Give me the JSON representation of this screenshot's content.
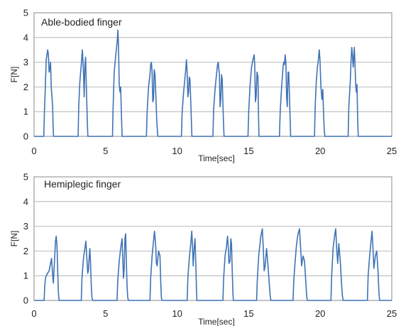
{
  "chart_data": [
    {
      "type": "line",
      "title": "Able-bodied finger",
      "xlabel": "Time[sec]",
      "ylabel": "F[N]",
      "xlim": [
        0,
        25
      ],
      "ylim": [
        0,
        5
      ],
      "xticks": [
        0,
        5,
        10,
        15,
        20,
        25
      ],
      "yticks": [
        0,
        1,
        2,
        3,
        4,
        5
      ],
      "grid": "horizontal",
      "line_color": "#3f73b5",
      "series": [
        {
          "x": [
            0,
            0.68,
            0.72,
            0.8,
            0.85,
            0.95,
            1.0,
            1.05,
            1.1,
            1.15,
            1.2,
            1.25,
            1.3,
            1.33,
            1.36,
            1.42,
            3.08,
            3.12,
            3.2,
            3.3,
            3.38,
            3.45,
            3.5,
            3.55,
            3.6,
            3.65,
            3.72,
            3.76,
            3.8,
            5.48,
            5.52,
            5.6,
            5.68,
            5.75,
            5.82,
            5.86,
            5.9,
            5.95,
            6.0,
            6.05,
            6.12,
            6.15,
            7.85,
            7.9,
            8.0,
            8.1,
            8.15,
            8.2,
            8.25,
            8.3,
            8.35,
            8.4,
            8.45,
            8.5,
            8.57,
            8.62,
            8.65,
            8.68,
            10.3,
            10.35,
            10.45,
            10.52,
            10.6,
            10.65,
            10.7,
            10.75,
            10.8,
            10.85,
            10.9,
            10.95,
            11.0,
            11.03,
            12.5,
            12.55,
            12.65,
            12.75,
            12.82,
            12.87,
            12.95,
            13.0,
            13.05,
            13.1,
            13.15,
            13.2,
            13.25,
            13.28,
            14.95,
            15.0,
            15.1,
            15.2,
            15.3,
            15.38,
            15.42,
            15.47,
            15.52,
            15.58,
            15.65,
            15.68,
            15.72,
            17.15,
            17.2,
            17.3,
            17.4,
            17.45,
            17.5,
            17.55,
            17.6,
            17.65,
            17.7,
            17.75,
            17.8,
            17.85,
            17.9,
            17.93,
            19.6,
            19.65,
            19.72,
            19.8,
            19.87,
            19.93,
            19.98,
            20.05,
            20.12,
            20.18,
            20.23,
            20.28,
            20.32,
            21.95,
            22.0,
            22.1,
            22.15,
            22.2,
            22.25,
            22.3,
            22.35,
            22.38,
            22.42,
            22.47,
            22.52,
            22.57,
            22.62,
            22.66,
            25
          ],
          "y": [
            0,
            0,
            0.9,
            2.2,
            3.1,
            3.5,
            3.3,
            2.6,
            2.7,
            3.0,
            2.0,
            1.6,
            1.2,
            0.4,
            0,
            0,
            0,
            1.2,
            2.2,
            2.9,
            3.5,
            2.6,
            1.6,
            2.9,
            3.2,
            2.1,
            0.6,
            0,
            0,
            0,
            1.1,
            2.6,
            3.1,
            3.5,
            3.9,
            4.3,
            3.7,
            2.1,
            1.8,
            2.0,
            0.6,
            0,
            0,
            1.0,
            2.0,
            2.5,
            2.9,
            3.0,
            2.6,
            1.4,
            1.5,
            2.7,
            2.5,
            1.8,
            0.7,
            0.2,
            0,
            0,
            0,
            1.0,
            1.8,
            2.2,
            2.7,
            3.1,
            2.6,
            1.6,
            1.8,
            2.4,
            2.3,
            1.4,
            0.5,
            0,
            0,
            1.1,
            1.9,
            2.5,
            2.9,
            3.0,
            2.5,
            1.2,
            1.5,
            2.5,
            2.3,
            1.3,
            0.4,
            0,
            0,
            1.0,
            2.1,
            2.8,
            3.1,
            3.3,
            2.9,
            1.4,
            1.6,
            2.6,
            2.4,
            1.0,
            0,
            0,
            1.0,
            2.0,
            2.8,
            3.0,
            2.9,
            3.3,
            3.0,
            1.6,
            1.2,
            2.6,
            2.6,
            1.6,
            0.6,
            0,
            0,
            1.2,
            2.2,
            2.8,
            3.1,
            3.5,
            3.1,
            2.0,
            1.5,
            1.9,
            1.0,
            0.3,
            0,
            0,
            1.2,
            2.2,
            3.0,
            3.6,
            3.3,
            2.8,
            3.2,
            3.6,
            3.1,
            2.2,
            1.8,
            2.1,
            0.6,
            0,
            0
          ]
        }
      ]
    },
    {
      "type": "line",
      "title": "Hemiplegic finger",
      "xlabel": "Time[sec]",
      "ylabel": "F[N]",
      "xlim": [
        0,
        25
      ],
      "ylim": [
        0,
        5
      ],
      "xticks": [
        0,
        5,
        10,
        15,
        20,
        25
      ],
      "yticks": [
        0,
        1,
        2,
        3,
        4,
        5
      ],
      "grid": "horizontal",
      "line_color": "#3f73b5",
      "series": [
        {
          "x": [
            0,
            0.7,
            0.75,
            0.8,
            0.85,
            0.95,
            1.05,
            1.15,
            1.22,
            1.3,
            1.35,
            1.42,
            1.5,
            1.55,
            1.6,
            1.65,
            1.7,
            1.75,
            3.3,
            3.35,
            3.45,
            3.55,
            3.62,
            3.68,
            3.75,
            3.8,
            3.85,
            3.9,
            3.95,
            4.0,
            4.05,
            4.1,
            5.8,
            5.85,
            5.95,
            6.05,
            6.15,
            6.2,
            6.25,
            6.3,
            6.35,
            6.4,
            6.45,
            6.5,
            6.55,
            6.6,
            8.1,
            8.15,
            8.25,
            8.35,
            8.42,
            8.5,
            8.55,
            8.6,
            8.7,
            8.8,
            8.85,
            8.9,
            8.95,
            10.7,
            10.75,
            10.85,
            10.95,
            11.02,
            11.08,
            11.12,
            11.2,
            11.25,
            11.3,
            11.35,
            11.38,
            13.2,
            13.25,
            13.35,
            13.45,
            13.52,
            13.58,
            13.62,
            13.7,
            13.75,
            13.8,
            13.85,
            13.9,
            13.93,
            15.55,
            15.6,
            15.7,
            15.85,
            15.95,
            16.02,
            16.08,
            16.15,
            16.25,
            16.35,
            16.45,
            16.5,
            16.55,
            18.1,
            18.15,
            18.25,
            18.35,
            18.45,
            18.55,
            18.62,
            18.7,
            18.8,
            18.9,
            19.0,
            19.05,
            19.1,
            20.75,
            20.8,
            20.9,
            21.0,
            21.08,
            21.15,
            21.22,
            21.3,
            21.4,
            21.5,
            21.55,
            21.6,
            23.3,
            23.35,
            23.45,
            23.55,
            23.62,
            23.68,
            23.75,
            23.85,
            23.95,
            24.05,
            24.1,
            24.15,
            25
          ],
          "y": [
            0,
            0,
            0.6,
            0.9,
            1.0,
            1.1,
            1.2,
            1.5,
            1.7,
            1.0,
            0.7,
            1.5,
            2.4,
            2.6,
            2.2,
            1.2,
            0.3,
            0,
            0,
            0.9,
            1.7,
            2.1,
            2.4,
            1.8,
            1.1,
            1.2,
            1.7,
            2.1,
            1.5,
            0.6,
            0.1,
            0,
            0,
            0.8,
            1.6,
            2.1,
            2.5,
            1.7,
            0.9,
            1.3,
            2.5,
            2.7,
            1.6,
            0.6,
            0.1,
            0,
            0,
            0.9,
            1.8,
            2.4,
            2.8,
            2.2,
            1.5,
            1.4,
            2.0,
            1.8,
            0.8,
            0.1,
            0,
            0,
            0.9,
            1.7,
            2.3,
            2.8,
            2.1,
            1.4,
            2.2,
            2.5,
            1.6,
            0.5,
            0,
            0,
            0.9,
            1.8,
            2.2,
            2.6,
            2.1,
            1.5,
            1.6,
            2.5,
            2.3,
            1.2,
            0.3,
            0,
            0,
            0.8,
            1.8,
            2.6,
            2.9,
            2.1,
            1.2,
            1.4,
            2.1,
            1.4,
            0.6,
            0.2,
            0,
            0,
            0.8,
            1.6,
            2.3,
            2.7,
            2.9,
            2.2,
            1.4,
            1.8,
            1.6,
            0.7,
            0.2,
            0,
            0,
            1.0,
            2.1,
            2.6,
            2.9,
            2.1,
            1.5,
            2.3,
            1.6,
            0.6,
            0.2,
            0,
            0,
            1.0,
            1.8,
            2.4,
            2.8,
            2.2,
            1.3,
            1.8,
            2.0,
            1.1,
            0.3,
            0,
            0
          ]
        }
      ]
    }
  ]
}
